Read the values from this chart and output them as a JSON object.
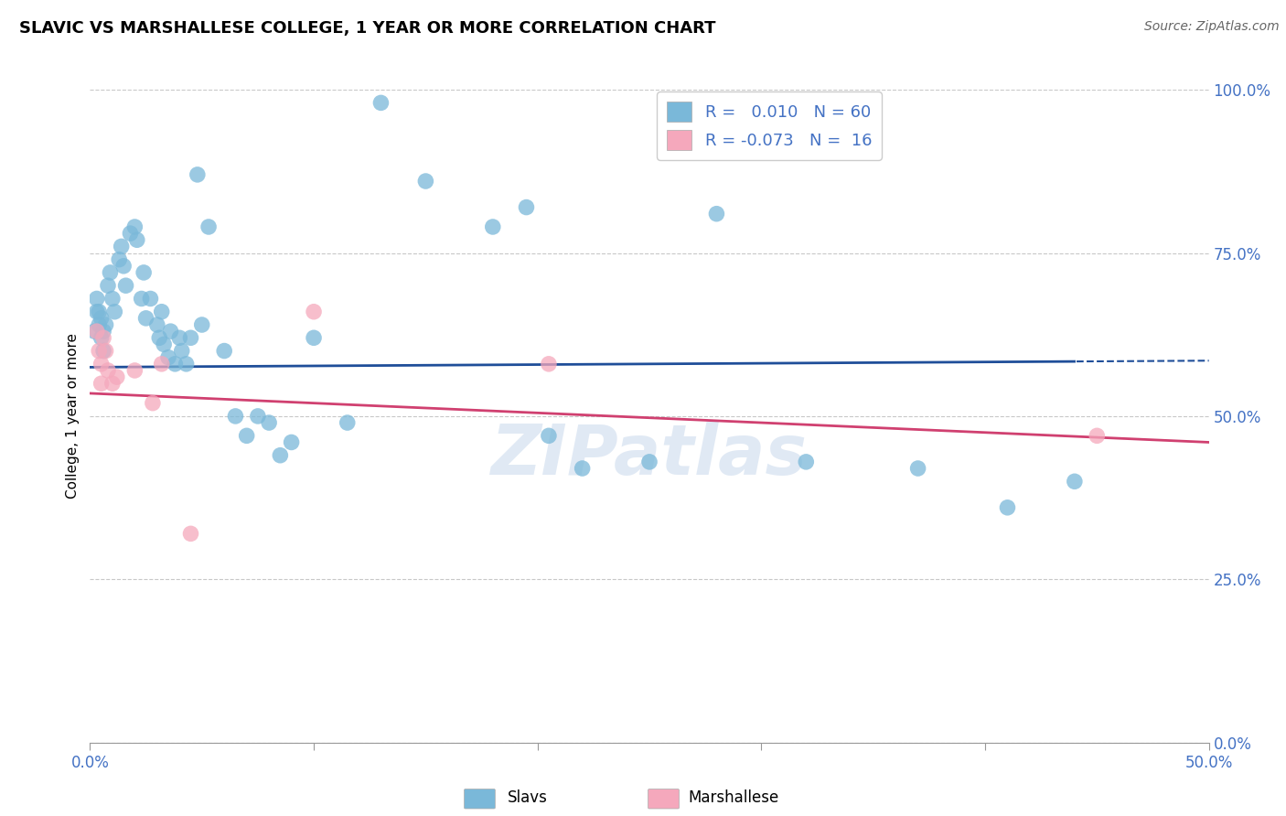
{
  "title": "SLAVIC VS MARSHALLESE COLLEGE, 1 YEAR OR MORE CORRELATION CHART",
  "source": "Source: ZipAtlas.com",
  "ylabel": "College, 1 year or more",
  "xlim": [
    0.0,
    50.0
  ],
  "ylim": [
    0.0,
    100.0
  ],
  "yticks": [
    0.0,
    25.0,
    50.0,
    75.0,
    100.0
  ],
  "xticks": [
    0.0,
    10.0,
    20.0,
    30.0,
    40.0,
    50.0
  ],
  "legend_r_blue": " 0.010",
  "legend_n_blue": "60",
  "legend_r_pink": "-0.073",
  "legend_n_pink": "16",
  "blue_color": "#7ab8d9",
  "pink_color": "#f5a8bc",
  "blue_line_color": "#1f4e99",
  "pink_line_color": "#d04070",
  "watermark": "ZIPatlas",
  "blue_dots": [
    [
      0.2,
      63.0
    ],
    [
      0.3,
      66.0
    ],
    [
      0.3,
      68.0
    ],
    [
      0.4,
      64.0
    ],
    [
      0.4,
      66.0
    ],
    [
      0.5,
      62.0
    ],
    [
      0.5,
      65.0
    ],
    [
      0.6,
      60.0
    ],
    [
      0.6,
      63.0
    ],
    [
      0.7,
      64.0
    ],
    [
      0.8,
      70.0
    ],
    [
      0.9,
      72.0
    ],
    [
      1.0,
      68.0
    ],
    [
      1.1,
      66.0
    ],
    [
      1.3,
      74.0
    ],
    [
      1.4,
      76.0
    ],
    [
      1.5,
      73.0
    ],
    [
      1.6,
      70.0
    ],
    [
      1.8,
      78.0
    ],
    [
      2.0,
      79.0
    ],
    [
      2.1,
      77.0
    ],
    [
      2.3,
      68.0
    ],
    [
      2.4,
      72.0
    ],
    [
      2.5,
      65.0
    ],
    [
      2.7,
      68.0
    ],
    [
      3.0,
      64.0
    ],
    [
      3.1,
      62.0
    ],
    [
      3.2,
      66.0
    ],
    [
      3.3,
      61.0
    ],
    [
      3.5,
      59.0
    ],
    [
      3.6,
      63.0
    ],
    [
      3.8,
      58.0
    ],
    [
      4.0,
      62.0
    ],
    [
      4.1,
      60.0
    ],
    [
      4.3,
      58.0
    ],
    [
      4.5,
      62.0
    ],
    [
      4.8,
      87.0
    ],
    [
      5.0,
      64.0
    ],
    [
      5.3,
      79.0
    ],
    [
      6.0,
      60.0
    ],
    [
      6.5,
      50.0
    ],
    [
      7.0,
      47.0
    ],
    [
      7.5,
      50.0
    ],
    [
      8.0,
      49.0
    ],
    [
      8.5,
      44.0
    ],
    [
      9.0,
      46.0
    ],
    [
      10.0,
      62.0
    ],
    [
      11.5,
      49.0
    ],
    [
      13.0,
      98.0
    ],
    [
      15.0,
      86.0
    ],
    [
      18.0,
      79.0
    ],
    [
      19.5,
      82.0
    ],
    [
      20.5,
      47.0
    ],
    [
      22.0,
      42.0
    ],
    [
      25.0,
      43.0
    ],
    [
      28.0,
      81.0
    ],
    [
      32.0,
      43.0
    ],
    [
      37.0,
      42.0
    ],
    [
      41.0,
      36.0
    ],
    [
      44.0,
      40.0
    ]
  ],
  "pink_dots": [
    [
      0.3,
      63.0
    ],
    [
      0.4,
      60.0
    ],
    [
      0.5,
      58.0
    ],
    [
      0.5,
      55.0
    ],
    [
      0.6,
      62.0
    ],
    [
      0.7,
      60.0
    ],
    [
      0.8,
      57.0
    ],
    [
      1.0,
      55.0
    ],
    [
      1.2,
      56.0
    ],
    [
      2.0,
      57.0
    ],
    [
      2.8,
      52.0
    ],
    [
      3.2,
      58.0
    ],
    [
      4.5,
      32.0
    ],
    [
      10.0,
      66.0
    ],
    [
      20.5,
      58.0
    ],
    [
      45.0,
      47.0
    ]
  ],
  "blue_solid_end": 44.0,
  "background_color": "#ffffff",
  "grid_color": "#c8c8c8"
}
